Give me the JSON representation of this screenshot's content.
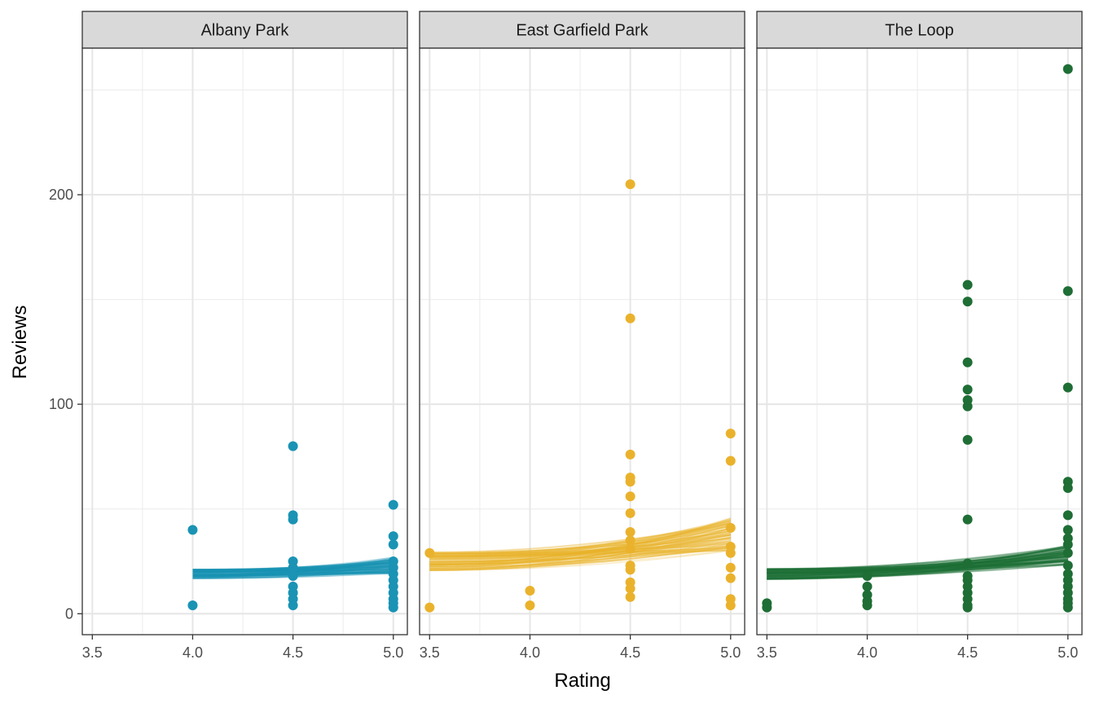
{
  "chart_data": {
    "type": "scatter",
    "xlabel": "Rating",
    "ylabel": "Reviews",
    "xlim": [
      3.45,
      5.07
    ],
    "ylim": [
      -10,
      270
    ],
    "x_ticks": [
      3.5,
      4.0,
      4.5,
      5.0
    ],
    "x_tick_labels": [
      "3.5",
      "4.0",
      "4.5",
      "5.0"
    ],
    "y_ticks": [
      0,
      100,
      200
    ],
    "y_tick_labels": [
      "0",
      "100",
      "200"
    ],
    "grid": true,
    "legend": "none",
    "fit_lines_per_panel": 120,
    "panels": [
      {
        "name": "Albany Park",
        "color": "#1a93b4",
        "x_range": [
          4.0,
          5.0
        ],
        "fit": {
          "at_min": 19,
          "at_5": 23,
          "spread": 5
        },
        "points": [
          {
            "x": 4.0,
            "y": 40
          },
          {
            "x": 4.0,
            "y": 4
          },
          {
            "x": 4.5,
            "y": 80
          },
          {
            "x": 4.5,
            "y": 47
          },
          {
            "x": 4.5,
            "y": 45
          },
          {
            "x": 4.5,
            "y": 25
          },
          {
            "x": 4.5,
            "y": 22
          },
          {
            "x": 4.5,
            "y": 18
          },
          {
            "x": 4.5,
            "y": 13
          },
          {
            "x": 4.5,
            "y": 10
          },
          {
            "x": 4.5,
            "y": 7
          },
          {
            "x": 4.5,
            "y": 4
          },
          {
            "x": 5.0,
            "y": 52
          },
          {
            "x": 5.0,
            "y": 37
          },
          {
            "x": 5.0,
            "y": 33
          },
          {
            "x": 5.0,
            "y": 25
          },
          {
            "x": 5.0,
            "y": 22
          },
          {
            "x": 5.0,
            "y": 19
          },
          {
            "x": 5.0,
            "y": 16
          },
          {
            "x": 5.0,
            "y": 13
          },
          {
            "x": 5.0,
            "y": 10
          },
          {
            "x": 5.0,
            "y": 7
          },
          {
            "x": 5.0,
            "y": 5
          },
          {
            "x": 5.0,
            "y": 3
          }
        ]
      },
      {
        "name": "East Garfield Park",
        "color": "#eab22c",
        "x_range": [
          3.5,
          5.0
        ],
        "fit": {
          "at_min": 25,
          "at_5": 38,
          "spread": 10
        },
        "points": [
          {
            "x": 3.5,
            "y": 29
          },
          {
            "x": 3.5,
            "y": 3
          },
          {
            "x": 4.0,
            "y": 11
          },
          {
            "x": 4.0,
            "y": 4
          },
          {
            "x": 4.5,
            "y": 205
          },
          {
            "x": 4.5,
            "y": 141
          },
          {
            "x": 4.5,
            "y": 76
          },
          {
            "x": 4.5,
            "y": 65
          },
          {
            "x": 4.5,
            "y": 63
          },
          {
            "x": 4.5,
            "y": 56
          },
          {
            "x": 4.5,
            "y": 48
          },
          {
            "x": 4.5,
            "y": 39
          },
          {
            "x": 4.5,
            "y": 35
          },
          {
            "x": 4.5,
            "y": 31
          },
          {
            "x": 4.5,
            "y": 23
          },
          {
            "x": 4.5,
            "y": 21
          },
          {
            "x": 4.5,
            "y": 15
          },
          {
            "x": 4.5,
            "y": 12
          },
          {
            "x": 4.5,
            "y": 8
          },
          {
            "x": 5.0,
            "y": 86
          },
          {
            "x": 5.0,
            "y": 73
          },
          {
            "x": 5.0,
            "y": 41
          },
          {
            "x": 5.0,
            "y": 32
          },
          {
            "x": 5.0,
            "y": 29
          },
          {
            "x": 5.0,
            "y": 22
          },
          {
            "x": 5.0,
            "y": 17
          },
          {
            "x": 5.0,
            "y": 7
          },
          {
            "x": 5.0,
            "y": 4
          }
        ]
      },
      {
        "name": "The Loop",
        "color": "#1e6e35",
        "x_range": [
          3.5,
          5.0
        ],
        "fit": {
          "at_min": 19,
          "at_5": 28,
          "spread": 6
        },
        "points": [
          {
            "x": 3.5,
            "y": 5
          },
          {
            "x": 3.5,
            "y": 3
          },
          {
            "x": 4.0,
            "y": 18
          },
          {
            "x": 4.0,
            "y": 13
          },
          {
            "x": 4.0,
            "y": 9
          },
          {
            "x": 4.0,
            "y": 6
          },
          {
            "x": 4.0,
            "y": 4
          },
          {
            "x": 4.5,
            "y": 157
          },
          {
            "x": 4.5,
            "y": 149
          },
          {
            "x": 4.5,
            "y": 120
          },
          {
            "x": 4.5,
            "y": 107
          },
          {
            "x": 4.5,
            "y": 102
          },
          {
            "x": 4.5,
            "y": 99
          },
          {
            "x": 4.5,
            "y": 83
          },
          {
            "x": 4.5,
            "y": 45
          },
          {
            "x": 4.5,
            "y": 24
          },
          {
            "x": 4.5,
            "y": 18
          },
          {
            "x": 4.5,
            "y": 16
          },
          {
            "x": 4.5,
            "y": 13
          },
          {
            "x": 4.5,
            "y": 10
          },
          {
            "x": 4.5,
            "y": 7
          },
          {
            "x": 4.5,
            "y": 4
          },
          {
            "x": 4.5,
            "y": 3
          },
          {
            "x": 5.0,
            "y": 260
          },
          {
            "x": 5.0,
            "y": 154
          },
          {
            "x": 5.0,
            "y": 108
          },
          {
            "x": 5.0,
            "y": 63
          },
          {
            "x": 5.0,
            "y": 60
          },
          {
            "x": 5.0,
            "y": 47
          },
          {
            "x": 5.0,
            "y": 40
          },
          {
            "x": 5.0,
            "y": 36
          },
          {
            "x": 5.0,
            "y": 33
          },
          {
            "x": 5.0,
            "y": 29
          },
          {
            "x": 5.0,
            "y": 23
          },
          {
            "x": 5.0,
            "y": 19
          },
          {
            "x": 5.0,
            "y": 16
          },
          {
            "x": 5.0,
            "y": 13
          },
          {
            "x": 5.0,
            "y": 10
          },
          {
            "x": 5.0,
            "y": 7
          },
          {
            "x": 5.0,
            "y": 5
          },
          {
            "x": 5.0,
            "y": 3
          }
        ]
      }
    ]
  }
}
